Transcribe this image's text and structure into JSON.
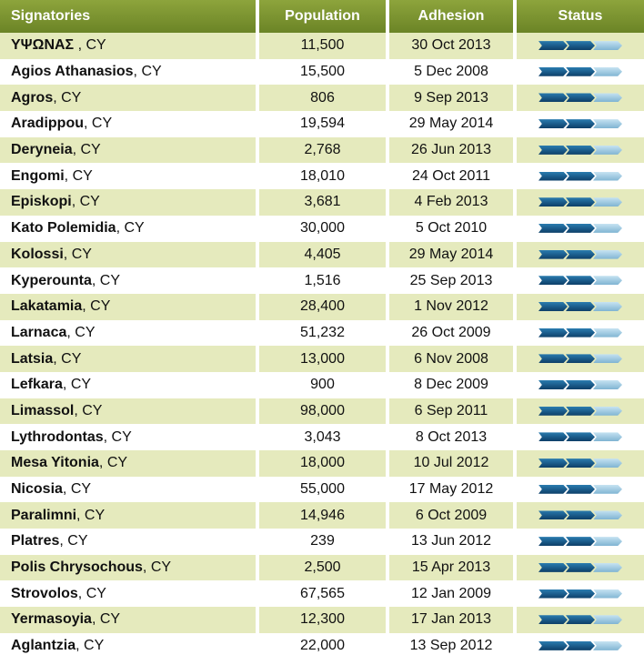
{
  "table": {
    "headers": {
      "signatories": "Signatories",
      "population": "Population",
      "adhesion": "Adhesion",
      "status": "Status"
    },
    "status_icon": "progress-arrows-icon",
    "colors": {
      "header": "#7a922f",
      "row_alt": "#e5eabd",
      "status_dark": "#1a5a8c",
      "status_light": "#a6cfe6"
    },
    "rows": [
      {
        "name": "ΥΨΩΝΑΣ ",
        "suffix": ", CY",
        "population": "11,500",
        "adhesion": "30 Oct 2013"
      },
      {
        "name": "Agios Athanasios",
        "suffix": ", CY",
        "population": "15,500",
        "adhesion": "5 Dec 2008"
      },
      {
        "name": "Agros",
        "suffix": ", CY",
        "population": "806",
        "adhesion": "9 Sep 2013"
      },
      {
        "name": "Aradippou",
        "suffix": ", CY",
        "population": "19,594",
        "adhesion": "29 May 2014"
      },
      {
        "name": "Deryneia",
        "suffix": ", CY",
        "population": "2,768",
        "adhesion": "26 Jun 2013"
      },
      {
        "name": "Engomi",
        "suffix": ", CY",
        "population": "18,010",
        "adhesion": "24 Oct 2011"
      },
      {
        "name": "Episkopi",
        "suffix": ", CY",
        "population": "3,681",
        "adhesion": "4 Feb 2013"
      },
      {
        "name": "Kato Polemidia",
        "suffix": ", CY",
        "population": "30,000",
        "adhesion": "5 Oct 2010"
      },
      {
        "name": "Kolossi",
        "suffix": ", CY",
        "population": "4,405",
        "adhesion": "29 May 2014"
      },
      {
        "name": "Kyperounta",
        "suffix": ", CY",
        "population": "1,516",
        "adhesion": "25 Sep 2013"
      },
      {
        "name": "Lakatamia",
        "suffix": ", CY",
        "population": "28,400",
        "adhesion": "1 Nov 2012"
      },
      {
        "name": "Larnaca",
        "suffix": ", CY",
        "population": "51,232",
        "adhesion": "26 Oct 2009"
      },
      {
        "name": "Latsia",
        "suffix": ", CY",
        "population": "13,000",
        "adhesion": "6 Nov 2008"
      },
      {
        "name": "Lefkara",
        "suffix": ", CY",
        "population": "900",
        "adhesion": "8 Dec 2009"
      },
      {
        "name": "Limassol",
        "suffix": ", CY",
        "population": "98,000",
        "adhesion": "6 Sep 2011"
      },
      {
        "name": "Lythrodontas",
        "suffix": ", CY",
        "population": "3,043",
        "adhesion": "8 Oct 2013"
      },
      {
        "name": "Mesa Yitonia",
        "suffix": ", CY",
        "population": "18,000",
        "adhesion": "10 Jul 2012"
      },
      {
        "name": "Nicosia",
        "suffix": ", CY",
        "population": "55,000",
        "adhesion": "17 May 2012"
      },
      {
        "name": "Paralimni",
        "suffix": ", CY",
        "population": "14,946",
        "adhesion": "6 Oct 2009"
      },
      {
        "name": "Platres",
        "suffix": ", CY",
        "population": "239",
        "adhesion": "13 Jun 2012"
      },
      {
        "name": "Polis Chrysochous",
        "suffix": ", CY",
        "population": "2,500",
        "adhesion": "15 Apr 2013"
      },
      {
        "name": "Strovolos",
        "suffix": ", CY",
        "population": "67,565",
        "adhesion": "12 Jan 2009"
      },
      {
        "name": "Yermasoyia",
        "suffix": ", CY",
        "population": "12,300",
        "adhesion": "17 Jan 2013"
      },
      {
        "name": "Aglantzia",
        "suffix": ", CY",
        "population": "22,000",
        "adhesion": "13 Sep 2012"
      }
    ]
  }
}
